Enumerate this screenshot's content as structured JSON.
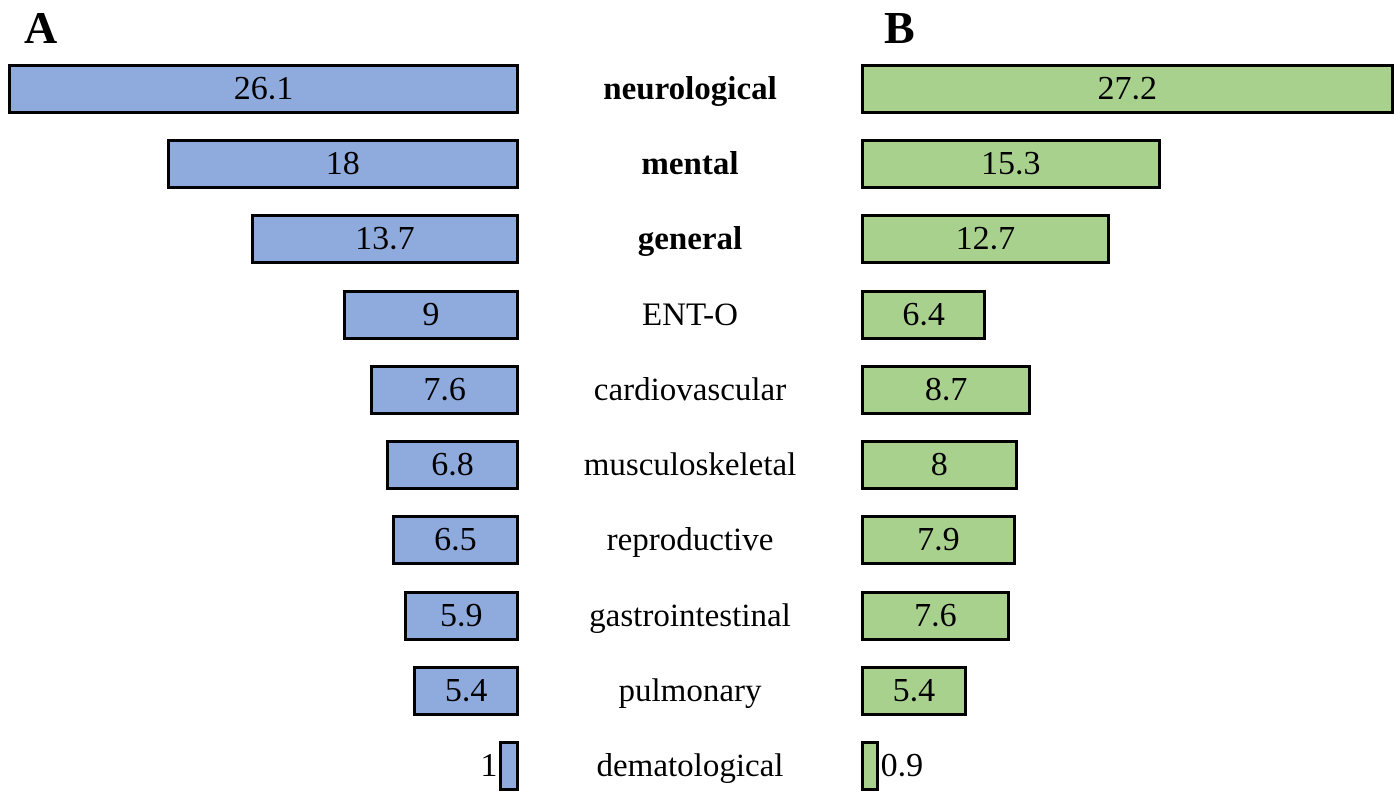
{
  "panel_a_label": "A",
  "panel_b_label": "B",
  "chart_data": {
    "type": "bar",
    "subtype": "butterfly-tornado",
    "orientation": "horizontal",
    "panels": [
      "A",
      "B"
    ],
    "categories": [
      "neurological",
      "mental",
      "general",
      "ENT-O",
      "cardiovascular",
      "musculoskeletal",
      "reproductive",
      "gastrointestinal",
      "pulmonary",
      "dematological"
    ],
    "bold_categories": [
      "neurological",
      "mental",
      "general"
    ],
    "series": [
      {
        "name": "A",
        "color": "#8FAADC",
        "alignment": "right",
        "values": [
          26.1,
          18,
          13.7,
          9,
          7.6,
          6.8,
          6.5,
          5.9,
          5.4,
          1
        ]
      },
      {
        "name": "B",
        "color": "#A9D18E",
        "alignment": "left",
        "values": [
          27.2,
          15.3,
          12.7,
          6.4,
          8.7,
          8,
          7.9,
          7.6,
          5.4,
          0.9
        ]
      }
    ],
    "value_labels_shown": true,
    "bar_border_color": "#000000",
    "axis_shown": false,
    "grid": false,
    "legend": false,
    "xlim": [
      0,
      27.5
    ]
  }
}
